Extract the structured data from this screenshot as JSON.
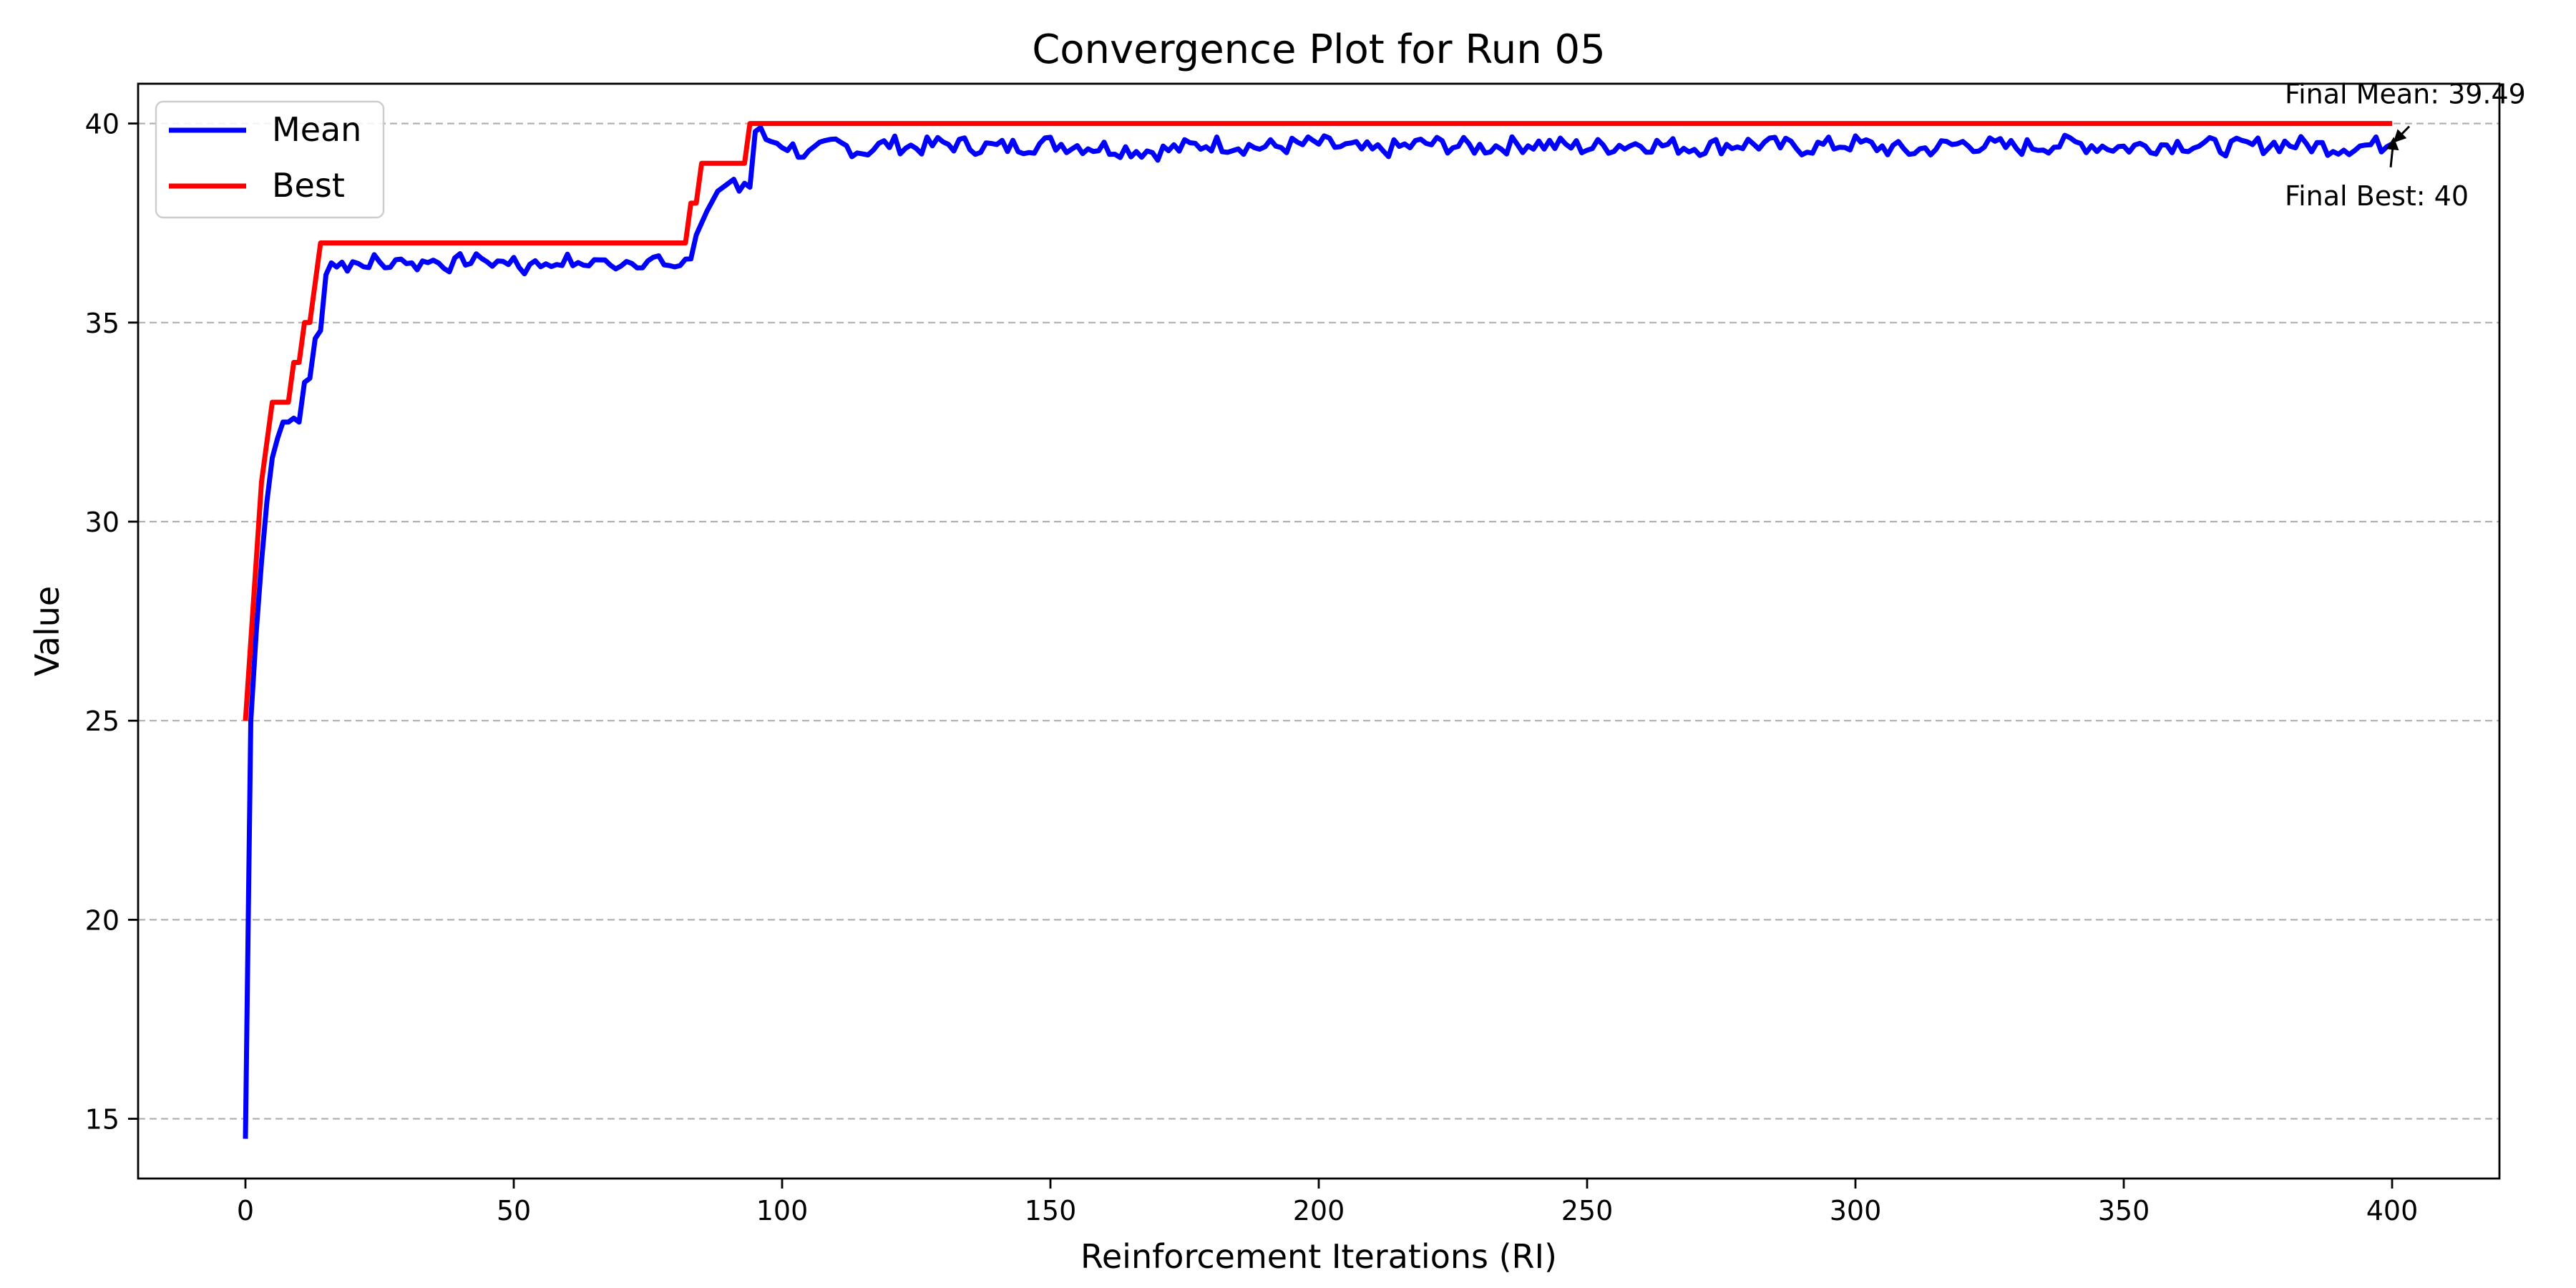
{
  "chart_data": {
    "type": "line",
    "title": "Convergence Plot for Run 05",
    "xlabel": "Reinforcement Iterations (RI)",
    "ylabel": "Value",
    "xlim": [
      -20,
      420
    ],
    "ylim": [
      13.5,
      41
    ],
    "x_ticks": [
      0,
      50,
      100,
      150,
      200,
      250,
      300,
      350,
      400
    ],
    "y_ticks": [
      15,
      20,
      25,
      30,
      35,
      40
    ],
    "grid": "y-axis dashed",
    "legend_position": "top-left",
    "series": [
      {
        "name": "Mean",
        "color": "#0000ff",
        "line_width": 3,
        "keypoints": [
          [
            0,
            14.5
          ],
          [
            1,
            25.0
          ],
          [
            2,
            27.2
          ],
          [
            3,
            29.0
          ],
          [
            4,
            30.5
          ],
          [
            5,
            31.6
          ],
          [
            6,
            32.1
          ],
          [
            7,
            32.5
          ],
          [
            8,
            32.5
          ],
          [
            9,
            32.6
          ],
          [
            10,
            32.5
          ],
          [
            11,
            33.5
          ],
          [
            12,
            33.6
          ],
          [
            13,
            34.6
          ],
          [
            14,
            34.8
          ],
          [
            15,
            36.2
          ],
          [
            16,
            36.5
          ],
          [
            17,
            36.4
          ],
          [
            18,
            36.5
          ],
          [
            19,
            36.4
          ],
          [
            20,
            36.6
          ],
          [
            22,
            36.4
          ],
          [
            24,
            36.6
          ],
          [
            26,
            36.4
          ],
          [
            28,
            36.5
          ],
          [
            30,
            36.6
          ],
          [
            32,
            36.4
          ],
          [
            34,
            36.6
          ],
          [
            36,
            36.5
          ],
          [
            38,
            36.4
          ],
          [
            40,
            36.6
          ],
          [
            42,
            36.5
          ],
          [
            44,
            36.7
          ],
          [
            46,
            36.4
          ],
          [
            48,
            36.6
          ],
          [
            50,
            36.5
          ],
          [
            52,
            36.3
          ],
          [
            54,
            36.6
          ],
          [
            56,
            36.4
          ],
          [
            58,
            36.5
          ],
          [
            60,
            36.6
          ],
          [
            62,
            36.4
          ],
          [
            64,
            36.5
          ],
          [
            66,
            36.6
          ],
          [
            68,
            36.4
          ],
          [
            70,
            36.5
          ],
          [
            72,
            36.6
          ],
          [
            74,
            36.4
          ],
          [
            76,
            36.6
          ],
          [
            78,
            36.5
          ],
          [
            80,
            36.4
          ],
          [
            82,
            36.5
          ],
          [
            83,
            36.6
          ],
          [
            84,
            37.2
          ],
          [
            86,
            37.8
          ],
          [
            88,
            38.3
          ],
          [
            90,
            38.5
          ],
          [
            91,
            38.6
          ],
          [
            92,
            38.3
          ],
          [
            93,
            38.5
          ],
          [
            94,
            38.4
          ],
          [
            95,
            39.8
          ],
          [
            96,
            39.9
          ],
          [
            97,
            39.6
          ],
          [
            100,
            39.5
          ],
          [
            105,
            39.2
          ],
          [
            110,
            39.5
          ],
          [
            115,
            39.3
          ],
          [
            120,
            39.5
          ],
          [
            125,
            39.4
          ],
          [
            130,
            39.5
          ],
          [
            140,
            39.4
          ],
          [
            150,
            39.5
          ],
          [
            160,
            39.4
          ],
          [
            170,
            39.3
          ],
          [
            180,
            39.5
          ],
          [
            190,
            39.4
          ],
          [
            200,
            39.5
          ],
          [
            210,
            39.3
          ],
          [
            220,
            39.5
          ],
          [
            230,
            39.4
          ],
          [
            240,
            39.5
          ],
          [
            250,
            39.4
          ],
          [
            260,
            39.5
          ],
          [
            270,
            39.4
          ],
          [
            280,
            39.5
          ],
          [
            290,
            39.4
          ],
          [
            300,
            39.5
          ],
          [
            310,
            39.3
          ],
          [
            320,
            39.5
          ],
          [
            330,
            39.4
          ],
          [
            340,
            39.5
          ],
          [
            350,
            39.4
          ],
          [
            360,
            39.5
          ],
          [
            370,
            39.4
          ],
          [
            380,
            39.5
          ],
          [
            390,
            39.4
          ],
          [
            400,
            39.49
          ]
        ]
      },
      {
        "name": "Best",
        "color": "#ff0000",
        "line_width": 3,
        "keypoints": [
          [
            0,
            25
          ],
          [
            1,
            27
          ],
          [
            2,
            29
          ],
          [
            3,
            31
          ],
          [
            4,
            32
          ],
          [
            5,
            33
          ],
          [
            8,
            33
          ],
          [
            9,
            34
          ],
          [
            10,
            34
          ],
          [
            11,
            35
          ],
          [
            12,
            35
          ],
          [
            13,
            36
          ],
          [
            14,
            37
          ],
          [
            82,
            37
          ],
          [
            83,
            38
          ],
          [
            84,
            38
          ],
          [
            85,
            39
          ],
          [
            93,
            39
          ],
          [
            94,
            40
          ],
          [
            400,
            40
          ]
        ]
      }
    ],
    "annotations": [
      {
        "text": "Final Mean: 39.49",
        "x": 400,
        "y": 39.49
      },
      {
        "text": "Final Best: 40",
        "x": 400,
        "y": 40
      }
    ]
  }
}
